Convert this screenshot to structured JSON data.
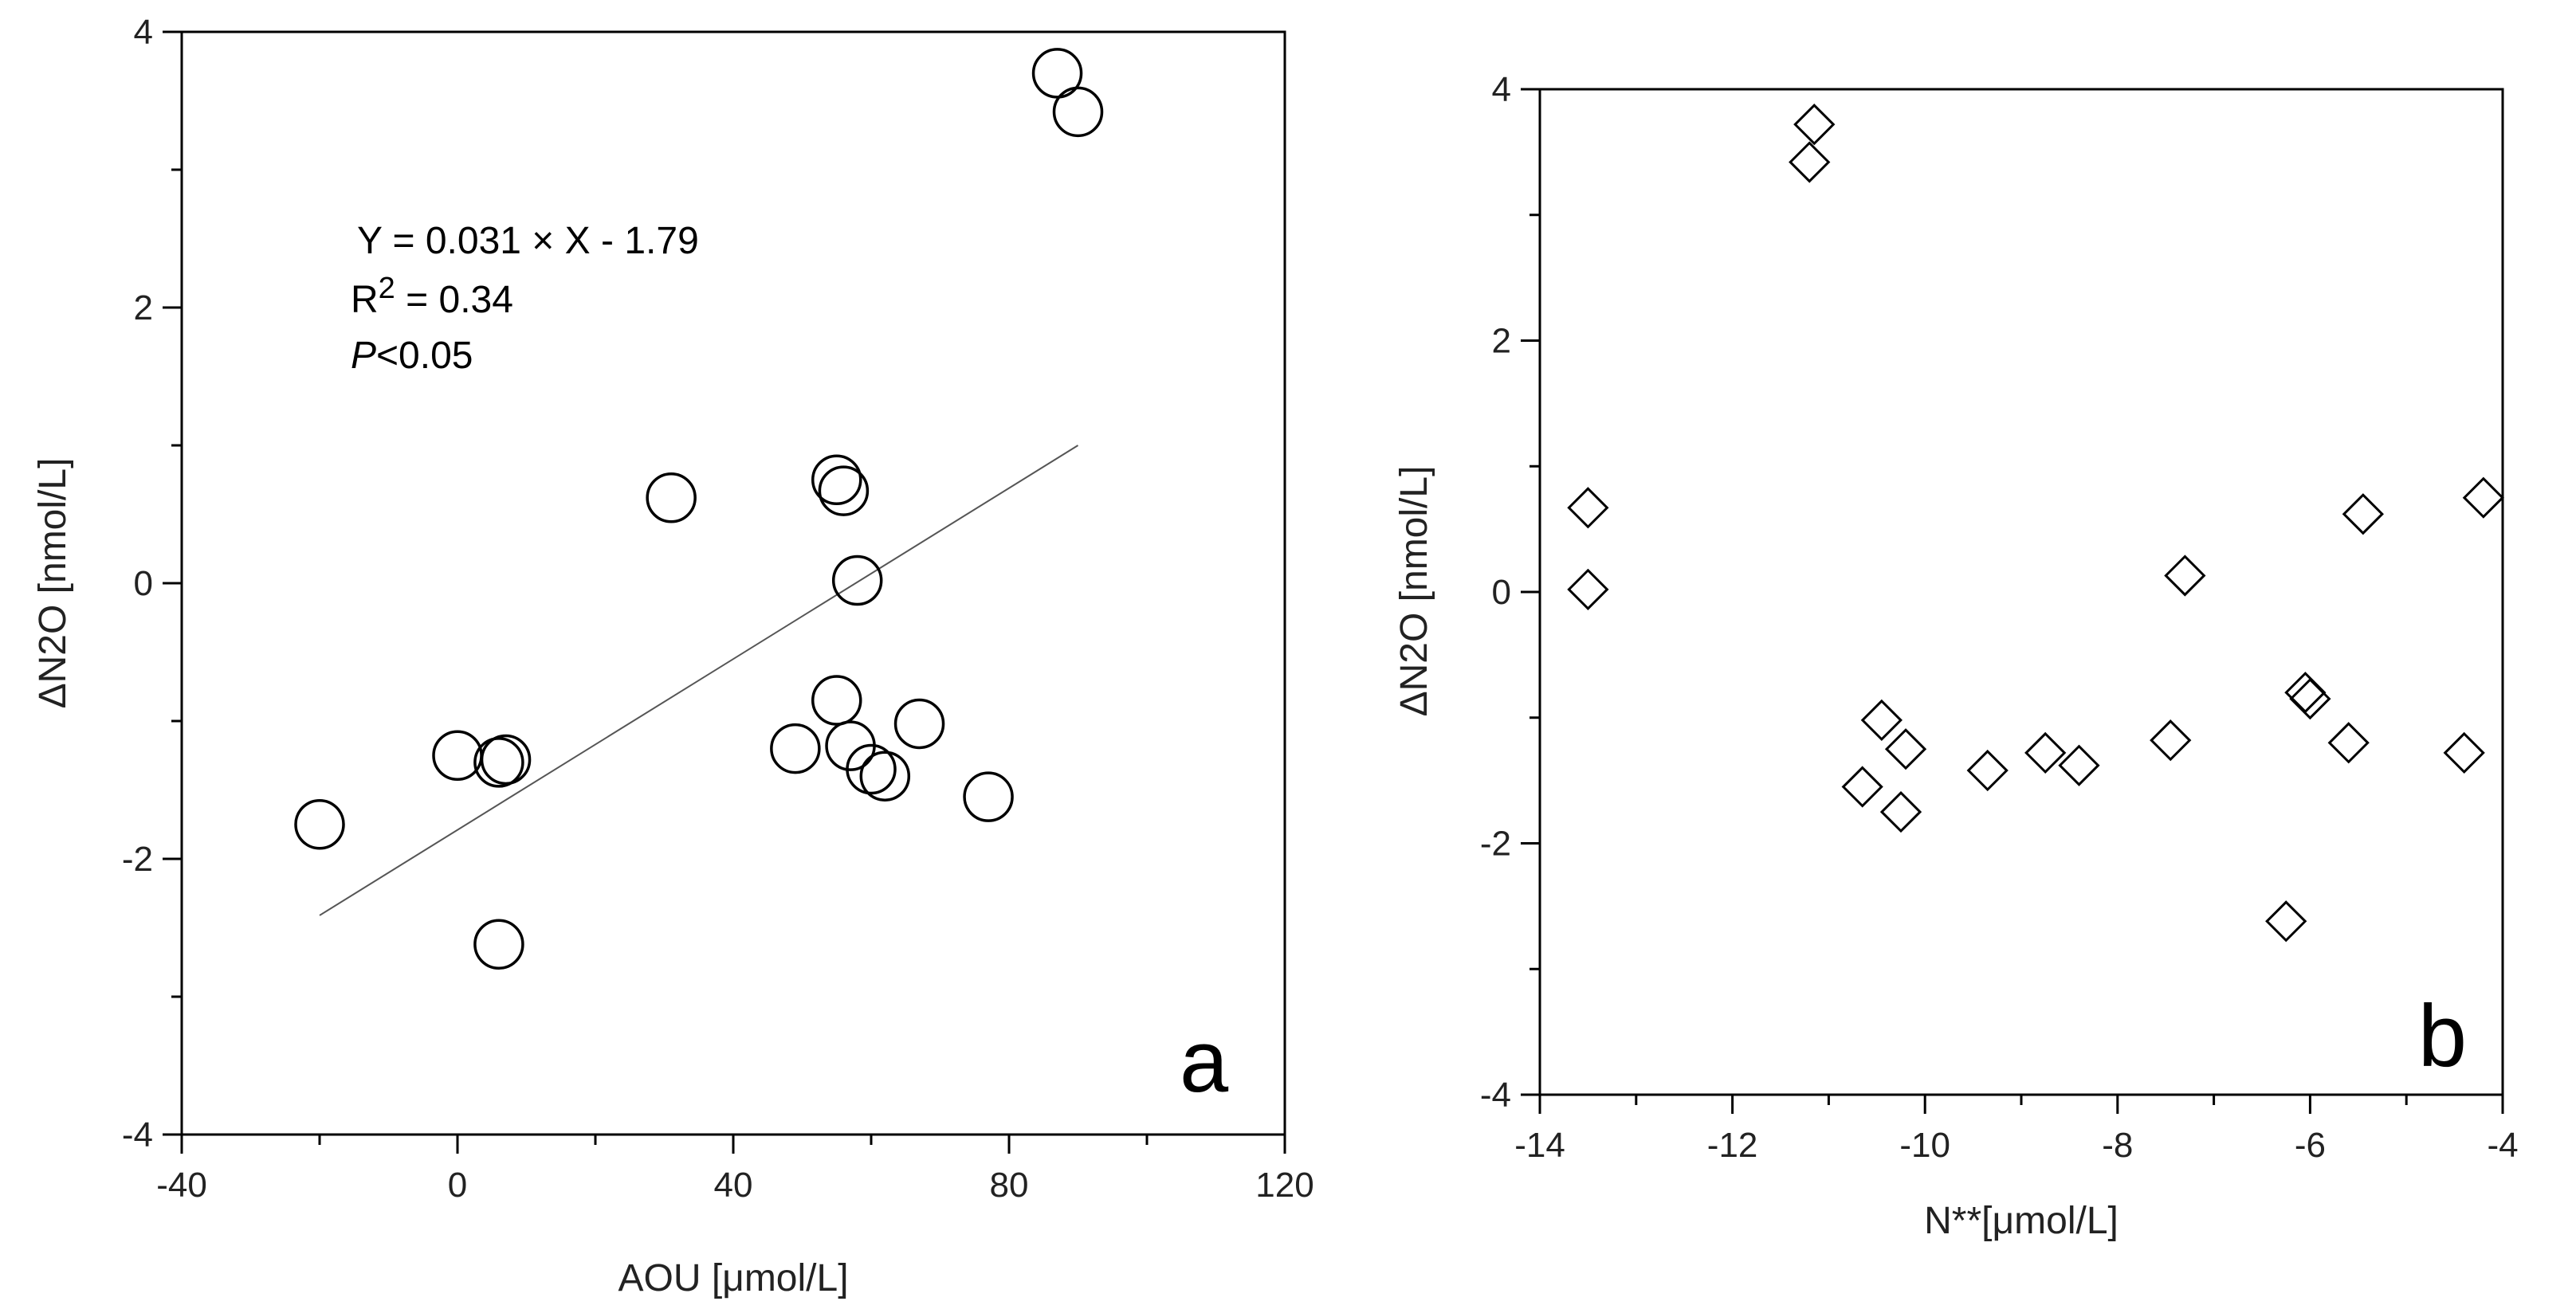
{
  "chart_data": [
    {
      "type": "scatter",
      "panel_label": "a",
      "xlabel": "AOU [μmol/L]",
      "ylabel": "ΔN2O [nmol/L]",
      "xlim": [
        -40,
        120
      ],
      "ylim": [
        -4,
        4
      ],
      "xticks": [
        -40,
        0,
        40,
        80,
        120
      ],
      "yticks": [
        -4,
        -2,
        0,
        2,
        4
      ],
      "marker": "circle",
      "points": [
        {
          "x": -20,
          "y": -1.75
        },
        {
          "x": 0,
          "y": -1.25
        },
        {
          "x": 6,
          "y": -1.3
        },
        {
          "x": 7,
          "y": -1.28
        },
        {
          "x": 6,
          "y": -2.62
        },
        {
          "x": 31,
          "y": 0.62
        },
        {
          "x": 49,
          "y": -1.2
        },
        {
          "x": 55,
          "y": -0.85
        },
        {
          "x": 55,
          "y": 0.75
        },
        {
          "x": 56,
          "y": 0.67
        },
        {
          "x": 57,
          "y": -1.18
        },
        {
          "x": 58,
          "y": 0.02
        },
        {
          "x": 60,
          "y": -1.35
        },
        {
          "x": 62,
          "y": -1.4
        },
        {
          "x": 67,
          "y": -1.02
        },
        {
          "x": 77,
          "y": -1.55
        },
        {
          "x": 87,
          "y": 3.7
        },
        {
          "x": 90,
          "y": 3.42
        }
      ],
      "fit": {
        "slope": 0.031,
        "intercept": -1.79,
        "x_range": [
          -20,
          90
        ]
      },
      "annotation": {
        "equation": "Y = 0.031 × X - 1.79",
        "r2_prefix": "R",
        "r2_sup": "2",
        "r2_value": " = 0.34",
        "p_italic": "P",
        "p_value": "<0.05"
      }
    },
    {
      "type": "scatter",
      "panel_label": "b",
      "xlabel": "N**[μmol/L]",
      "ylabel": "ΔN2O [nmol/L]",
      "xlim": [
        -14,
        -4
      ],
      "ylim": [
        -4,
        4
      ],
      "xticks": [
        -14,
        -12,
        -10,
        -8,
        -6,
        -4
      ],
      "yticks": [
        -4,
        -2,
        0,
        2,
        4
      ],
      "marker": "diamond",
      "points": [
        {
          "x": -13.5,
          "y": 0.67
        },
        {
          "x": -13.5,
          "y": 0.02
        },
        {
          "x": -11.15,
          "y": 3.72
        },
        {
          "x": -11.2,
          "y": 3.42
        },
        {
          "x": -10.65,
          "y": -1.55
        },
        {
          "x": -10.45,
          "y": -1.02
        },
        {
          "x": -10.25,
          "y": -1.75
        },
        {
          "x": -10.2,
          "y": -1.25
        },
        {
          "x": -9.35,
          "y": -1.42
        },
        {
          "x": -8.75,
          "y": -1.28
        },
        {
          "x": -8.4,
          "y": -1.38
        },
        {
          "x": -7.45,
          "y": -1.18
        },
        {
          "x": -7.3,
          "y": 0.13
        },
        {
          "x": -6.25,
          "y": -2.62
        },
        {
          "x": -6.05,
          "y": -0.8
        },
        {
          "x": -6.0,
          "y": -0.85
        },
        {
          "x": -5.6,
          "y": -1.2
        },
        {
          "x": -5.45,
          "y": 0.62
        },
        {
          "x": -4.4,
          "y": -1.28
        },
        {
          "x": -4.2,
          "y": 0.75
        }
      ]
    }
  ]
}
